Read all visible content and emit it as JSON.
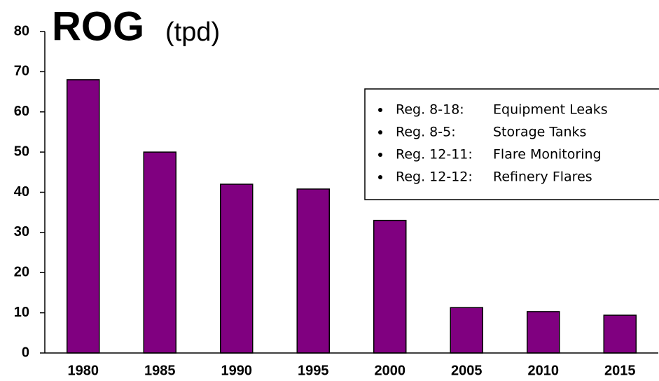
{
  "chart_data": {
    "type": "bar",
    "title": "ROG",
    "subtitle": "(tpd)",
    "categories": [
      "1980",
      "1985",
      "1990",
      "1995",
      "2000",
      "2005",
      "2010",
      "2015"
    ],
    "values": [
      68,
      50,
      42,
      40.8,
      33,
      11.3,
      10.3,
      9.4
    ],
    "color": "#800080",
    "ylim": [
      0,
      80
    ],
    "yticks": [
      0,
      10,
      20,
      30,
      40,
      50,
      60,
      70,
      80
    ],
    "annotations": [
      {
        "label": "Reg. 8-18:",
        "text": "Equipment Leaks"
      },
      {
        "label": "Reg. 8-5:",
        "text": "Storage Tanks"
      },
      {
        "label": "Reg. 12-11:",
        "text": "Flare Monitoring"
      },
      {
        "label": "Reg. 12-12:",
        "text": "Refinery Flares"
      }
    ]
  }
}
